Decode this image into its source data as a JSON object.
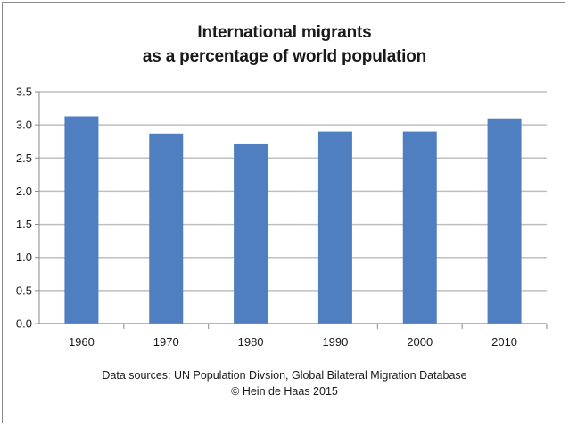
{
  "chart_data": {
    "type": "bar",
    "title_lines": [
      "International migrants",
      "as a percentage of world population"
    ],
    "categories": [
      "1960",
      "1970",
      "1980",
      "1990",
      "2000",
      "2010"
    ],
    "values": [
      3.13,
      2.87,
      2.72,
      2.9,
      2.9,
      3.1
    ],
    "ylim": [
      0,
      3.5
    ],
    "yticks": [
      "0.0",
      "0.5",
      "1.0",
      "1.5",
      "2.0",
      "2.5",
      "3.0",
      "3.5"
    ],
    "grid": true,
    "bar_color": "#4f7fc0",
    "gridline_color": "#bfbfbf",
    "xlabel": "",
    "ylabel": "",
    "sources": [
      "Data sources: UN  Population Divsion, Global Bilateral Migration Database",
      "© Hein de Haas 2015"
    ]
  }
}
